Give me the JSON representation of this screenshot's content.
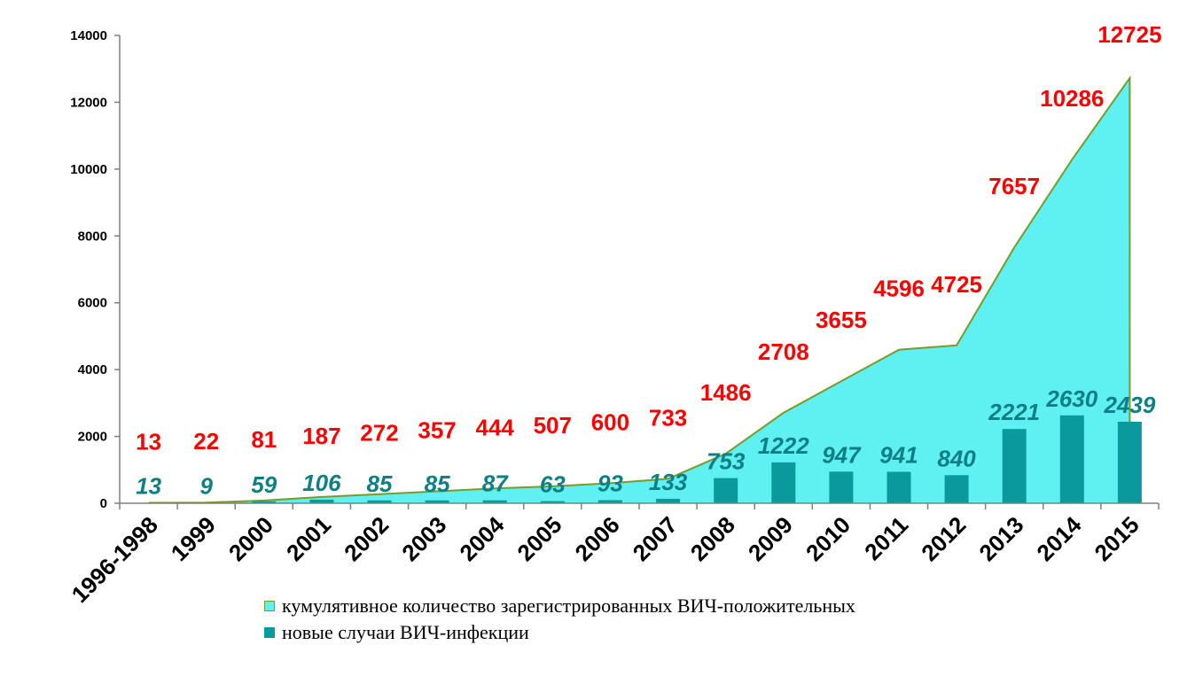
{
  "chart_data": {
    "type": "area+bar",
    "categories": [
      "1996-1998",
      "1999",
      "2000",
      "2001",
      "2002",
      "2003",
      "2004",
      "2005",
      "2006",
      "2007",
      "2008",
      "2009",
      "2010",
      "2011",
      "2012",
      "2013",
      "2014",
      "2015"
    ],
    "series": [
      {
        "name": "кумулятивное количество зарегистрированных ВИЧ-положительных",
        "type": "area",
        "color": "#5ff0f2",
        "line_color": "#7a9a2a",
        "values": [
          13,
          22,
          81,
          187,
          272,
          357,
          444,
          507,
          600,
          733,
          1486,
          2708,
          3655,
          4596,
          4725,
          7657,
          10286,
          12725
        ],
        "labels": [
          "13",
          "22",
          "81",
          "187",
          "272",
          "357",
          "444",
          "507",
          "600",
          "733",
          "1486",
          "2708",
          "3655",
          "4596",
          "4725",
          "7657",
          "10286",
          "12725"
        ],
        "label_color": "#ff0000"
      },
      {
        "name": "новые случаи ВИЧ-инфекции",
        "type": "bar",
        "color": "#0a9a9e",
        "values": [
          13,
          9,
          59,
          106,
          85,
          85,
          87,
          63,
          93,
          133,
          753,
          1222,
          947,
          941,
          840,
          2221,
          2630,
          2439
        ],
        "labels": [
          "13",
          "9",
          "59",
          "106",
          "85",
          "85",
          "87",
          "63",
          "93",
          "133",
          "753",
          "1222",
          "947",
          "941",
          "840",
          "2221",
          "2630",
          "2439"
        ],
        "label_color": "#0e7f84"
      }
    ],
    "ylim": [
      0,
      14000
    ],
    "yticks": [
      "0",
      "2000",
      "4000",
      "6000",
      "8000",
      "10000",
      "12000",
      "14000"
    ],
    "ytick_values": [
      0,
      2000,
      4000,
      6000,
      8000,
      10000,
      12000,
      14000
    ],
    "title": "",
    "xlabel": "",
    "ylabel": "",
    "legend_position": "bottom",
    "grid": false
  },
  "legend": {
    "items": [
      {
        "label": "кумулятивное количество зарегистрированных ВИЧ-положительных",
        "color": "#5ff0f2",
        "border": "#7a9a2a"
      },
      {
        "label": "новые случаи ВИЧ-инфекции",
        "color": "#0a9a9e",
        "border": "#0a9a9e"
      }
    ]
  }
}
